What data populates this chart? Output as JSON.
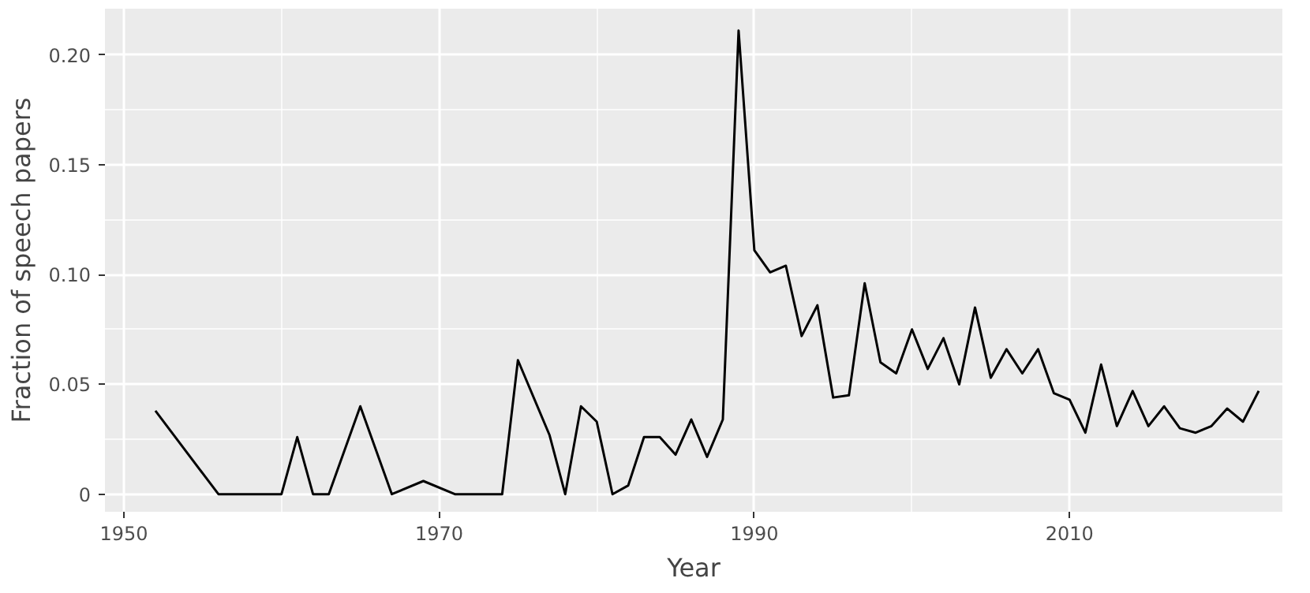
{
  "chart_data": {
    "type": "line",
    "xlabel": "Year",
    "ylabel": "Fraction of speech papers",
    "x": [
      1952,
      1956,
      1958,
      1960,
      1961,
      1962,
      1963,
      1965,
      1967,
      1969,
      1971,
      1972,
      1974,
      1975,
      1977,
      1978,
      1979,
      1980,
      1981,
      1982,
      1983,
      1984,
      1985,
      1986,
      1987,
      1988,
      1989,
      1990,
      1991,
      1992,
      1993,
      1994,
      1995,
      1996,
      1997,
      1998,
      1999,
      2000,
      2001,
      2002,
      2003,
      2004,
      2005,
      2006,
      2007,
      2008,
      2009,
      2010,
      2011,
      2012,
      2013,
      2014,
      2015,
      2016,
      2017,
      2018,
      2019,
      2020,
      2021,
      2022
    ],
    "series": [
      {
        "color": "#000000",
        "values": [
          0.038,
          0,
          0,
          0,
          0.026,
          0,
          0,
          0.04,
          0,
          0.006,
          0,
          0,
          0,
          0.061,
          0.027,
          0,
          0.04,
          0.033,
          0,
          0.004,
          0.026,
          0.026,
          0.018,
          0.034,
          0.017,
          0.034,
          0.211,
          0.111,
          0.101,
          0.104,
          0.072,
          0.086,
          0.044,
          0.045,
          0.096,
          0.06,
          0.055,
          0.075,
          0.057,
          0.071,
          0.05,
          0.085,
          0.053,
          0.066,
          0.055,
          0.066,
          0.046,
          0.043,
          0.028,
          0.059,
          0.031,
          0.047,
          0.031,
          0.04,
          0.03,
          0.028,
          0.031,
          0.039,
          0.033,
          0.047
        ]
      }
    ],
    "xlim": [
      1948.8,
      2023.5
    ],
    "ylim": [
      -0.008,
      0.221
    ],
    "xticks": [
      1950,
      1970,
      1990,
      2010
    ],
    "yticks": [
      {
        "value": 0,
        "label": "0"
      },
      {
        "value": 0.05,
        "label": "0.05"
      },
      {
        "value": 0.1,
        "label": "0.10"
      },
      {
        "value": 0.15,
        "label": "0.15"
      },
      {
        "value": 0.2,
        "label": "0.20"
      }
    ],
    "grid": true,
    "line_style": "solid"
  }
}
